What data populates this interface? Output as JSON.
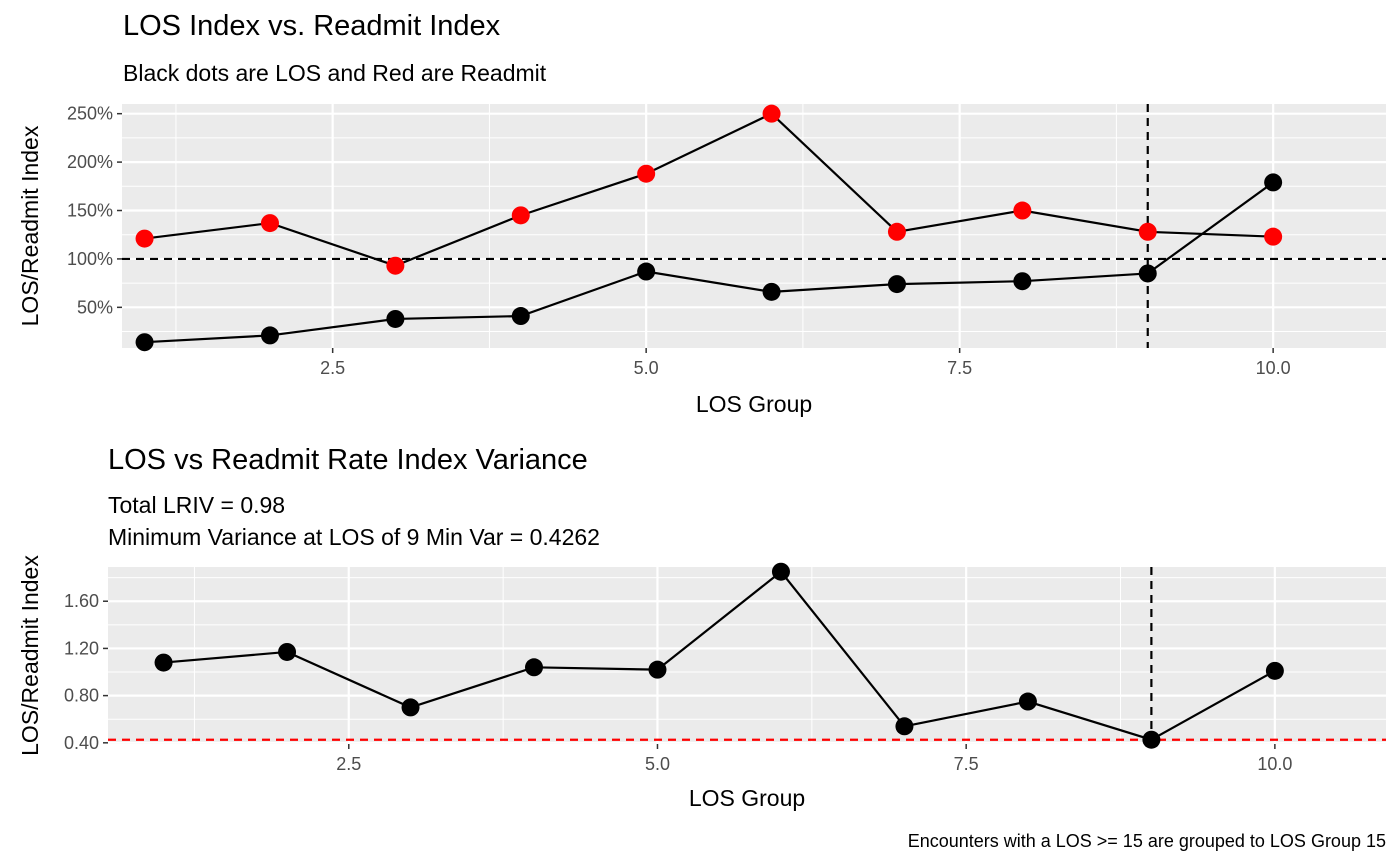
{
  "chart_data": [
    {
      "type": "line",
      "title": "LOS Index vs. Readmit Index",
      "subtitle": "Black dots are LOS and Red are Readmit",
      "xlabel": "LOS Group",
      "ylabel": "LOS/Readmit Index",
      "xlim": [
        0.82,
        10.9
      ],
      "ylim": [
        0.08,
        2.6
      ],
      "xticks": [
        2.5,
        5.0,
        7.5,
        10.0
      ],
      "xtick_labels": [
        "2.5",
        "5.0",
        "7.5",
        "10.0"
      ],
      "yticks": [
        0.5,
        1.0,
        1.5,
        2.0,
        2.5
      ],
      "ytick_labels": [
        "50%",
        "100%",
        "150%",
        "200%",
        "250%"
      ],
      "grid": true,
      "series": [
        {
          "marker_color": "#ff0000",
          "x": [
            1,
            2,
            3,
            4,
            5,
            6,
            7,
            8,
            9,
            10
          ],
          "values": [
            1.21,
            1.37,
            0.93,
            1.45,
            1.88,
            2.5,
            1.28,
            1.5,
            1.28,
            1.23
          ]
        },
        {
          "marker_color": "#000000",
          "x": [
            1,
            2,
            3,
            4,
            5,
            6,
            7,
            8,
            9,
            10
          ],
          "values": [
            0.14,
            0.21,
            0.38,
            0.41,
            0.87,
            0.66,
            0.74,
            0.77,
            0.85,
            1.79
          ]
        }
      ],
      "reference_lines": [
        {
          "orientation": "horizontal",
          "value": 1.0,
          "color": "#000000",
          "style": "dashed"
        },
        {
          "orientation": "vertical",
          "value": 9,
          "color": "#000000",
          "style": "dashed"
        }
      ]
    },
    {
      "type": "line",
      "title": "LOS vs Readmit Rate Index Variance",
      "subtitle_lines": [
        "Total LRIV = 0.98",
        "Minimum Variance at LOS of 9 Min Var = 0.4262"
      ],
      "xlabel": "LOS Group",
      "ylabel": "LOS/Readmit Index",
      "xlim": [
        0.55,
        10.9
      ],
      "ylim": [
        0.39,
        1.89
      ],
      "xticks": [
        2.5,
        5.0,
        7.5,
        10.0
      ],
      "xtick_labels": [
        "2.5",
        "5.0",
        "7.5",
        "10.0"
      ],
      "yticks": [
        0.4,
        0.8,
        1.2,
        1.6
      ],
      "ytick_labels": [
        "0.40",
        "0.80",
        "1.20",
        "1.60"
      ],
      "grid": true,
      "series": [
        {
          "marker_color": "#000000",
          "x": [
            1,
            2,
            3,
            4,
            5,
            6,
            7,
            8,
            9,
            10
          ],
          "values": [
            1.08,
            1.17,
            0.7,
            1.04,
            1.02,
            1.85,
            0.54,
            0.75,
            0.4262,
            1.01
          ]
        }
      ],
      "reference_lines": [
        {
          "orientation": "horizontal",
          "value": 0.4262,
          "color": "#ff0000",
          "style": "dashed"
        },
        {
          "orientation": "vertical",
          "value": 9,
          "color": "#000000",
          "style": "dashed"
        }
      ]
    }
  ],
  "caption": "Encounters with a LOS >= 15 are grouped to LOS Group 15"
}
